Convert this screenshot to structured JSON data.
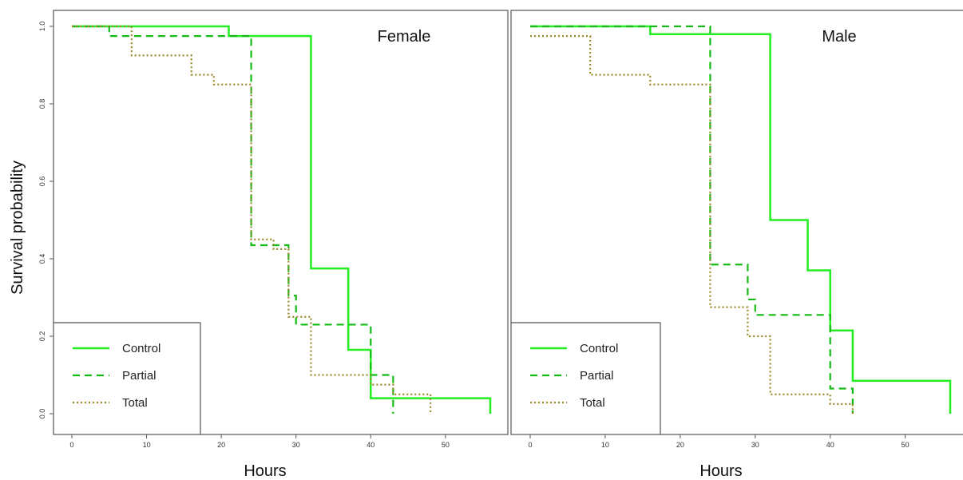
{
  "colors": {
    "control": "#22ee22",
    "partial": "#14bb14",
    "total": "#9a8a2a",
    "frame": "#555555"
  },
  "axis_labels": {
    "ylabel": "Survival probability",
    "xlabel_left": "Hours",
    "xlabel_right": "Hours"
  },
  "chart_data": [
    {
      "type": "line",
      "step": true,
      "title": "Female",
      "xlabel": "Hours",
      "ylabel": "Survival probability",
      "xlim": [
        0,
        56
      ],
      "ylim": [
        0,
        1
      ],
      "x_ticks": [
        "0",
        "10",
        "20",
        "30",
        "40",
        "50"
      ],
      "y_ticks": [
        "0.0",
        "0.2",
        "0.4",
        "0.6",
        "0.8",
        "1.0"
      ],
      "legend": {
        "position": "bottom-left",
        "labels": [
          "Control",
          "Partial",
          "Total"
        ]
      },
      "series": [
        {
          "name": "Control",
          "style": "solid",
          "times": [
            0,
            21,
            32,
            37,
            40,
            56
          ],
          "survival": [
            1.0,
            0.975,
            0.375,
            0.165,
            0.04,
            0.0
          ]
        },
        {
          "name": "Partial",
          "style": "dashed",
          "times": [
            0,
            5,
            24,
            29,
            30,
            40,
            43
          ],
          "survival": [
            1.0,
            0.975,
            0.435,
            0.305,
            0.23,
            0.1,
            0.0
          ]
        },
        {
          "name": "Total",
          "style": "dotted",
          "times": [
            0,
            8,
            16,
            19,
            24,
            27,
            29,
            32,
            40,
            43,
            48
          ],
          "survival": [
            1.0,
            0.925,
            0.875,
            0.85,
            0.45,
            0.425,
            0.25,
            0.1,
            0.075,
            0.05,
            0.0
          ]
        }
      ]
    },
    {
      "type": "line",
      "step": true,
      "title": "Male",
      "xlabel": "Hours",
      "ylabel": "",
      "xlim": [
        0,
        56
      ],
      "ylim": [
        0,
        1
      ],
      "x_ticks": [
        "0",
        "10",
        "20",
        "30",
        "40",
        "50"
      ],
      "y_ticks": [],
      "legend": {
        "position": "bottom-left",
        "labels": [
          "Control",
          "Partial",
          "Total"
        ]
      },
      "series": [
        {
          "name": "Control",
          "style": "solid",
          "times": [
            0,
            16,
            32,
            37,
            40,
            43,
            56
          ],
          "survival": [
            1.0,
            0.98,
            0.5,
            0.37,
            0.215,
            0.085,
            0.0
          ]
        },
        {
          "name": "Partial",
          "style": "dashed",
          "times": [
            0,
            24,
            29,
            30,
            40,
            43
          ],
          "survival": [
            1.0,
            0.385,
            0.295,
            0.255,
            0.065,
            0.0
          ]
        },
        {
          "name": "Total",
          "style": "dotted",
          "times": [
            0,
            8,
            16,
            24,
            29,
            32,
            40,
            43
          ],
          "survival": [
            0.975,
            0.875,
            0.85,
            0.275,
            0.2,
            0.05,
            0.025,
            0.0
          ]
        }
      ]
    }
  ]
}
